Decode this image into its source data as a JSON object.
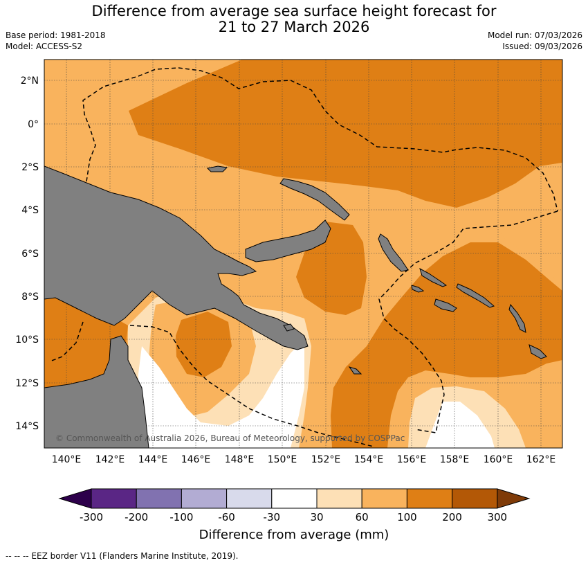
{
  "header": {
    "title_line1": "Difference from average sea surface height forecast for",
    "title_line2": "21 to 27 March 2026",
    "base_period": "Base period: 1981-2018",
    "model": "Model: ACCESS-S2",
    "model_run": "Model run: 07/03/2026",
    "issued": "Issued: 09/03/2026"
  },
  "map": {
    "lon_ticks": [
      "140°E",
      "142°E",
      "144°E",
      "146°E",
      "148°E",
      "150°E",
      "152°E",
      "154°E",
      "156°E",
      "158°E",
      "160°E",
      "162°E"
    ],
    "lat_ticks": [
      "2°N",
      "0°",
      "2°S",
      "4°S",
      "6°S",
      "8°S",
      "10°S",
      "12°S",
      "14°S"
    ],
    "copyright": "© Commonwealth of Australia 2026, Bureau of Meteorology, supported by COSPPac",
    "colors": {
      "land": "#808080",
      "band_30_60": "#fde0b6",
      "band_60_100": "#f9b35d",
      "band_100_200": "#df7f15",
      "ocean_neutral": "#ffffff"
    }
  },
  "colorbar": {
    "labels": [
      "-300",
      "-200",
      "-100",
      "-60",
      "-30",
      "30",
      "60",
      "100",
      "200",
      "300"
    ],
    "colors": [
      "#5a2685",
      "#8172b0",
      "#b2acd3",
      "#d8daeb",
      "#ffffff",
      "#fde0b6",
      "#f9b35d",
      "#df7f15",
      "#b35806"
    ],
    "extend_low_color": "#2d004b",
    "extend_high_color": "#7f3b08",
    "title": "Difference from average (mm)"
  },
  "footnote": "--  --  -- EEZ border V11 (Flanders Marine Institute, 2019)."
}
